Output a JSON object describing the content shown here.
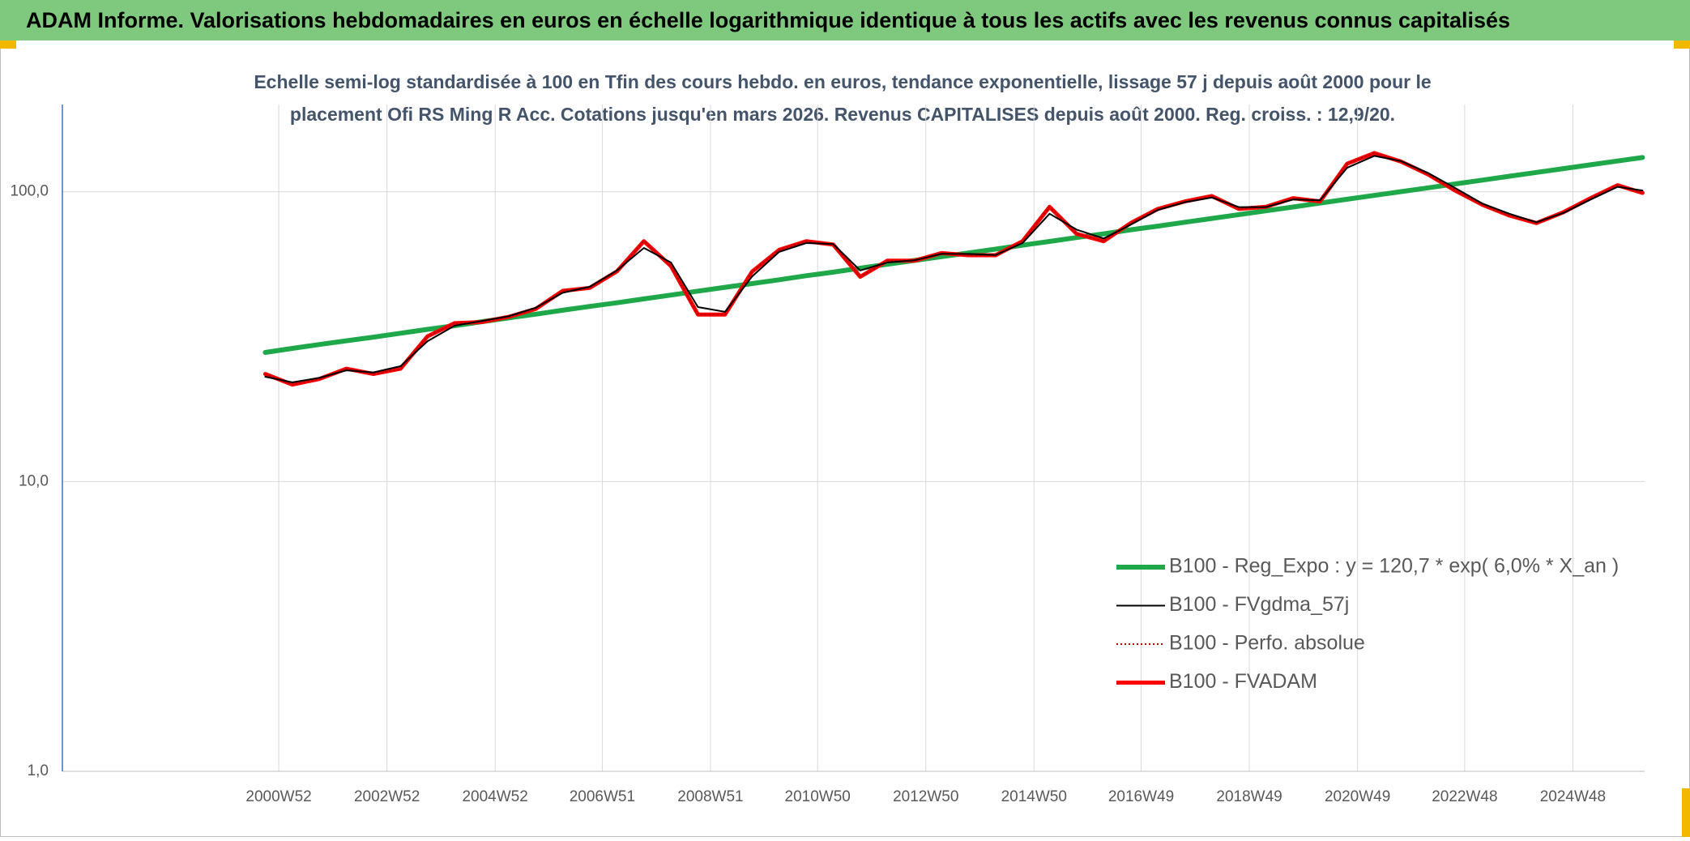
{
  "chart_data": {
    "type": "line",
    "title": "ADAM Informe. Valorisations hebdomadaires en euros en échelle logarithmique identique à tous les actifs avec les revenus connus capitalisés",
    "subtitle": [
      "Echelle semi-log standardisée à 100 en Tfin des cours hebdo. en euros, tendance exponentielle, lissage 57 j depuis août 2000 pour le",
      "placement Ofi RS Ming R Acc. Cotations jusqu'en mars 2026. Revenus CAPITALISES depuis août 2000. Reg. croiss. : 12,9/20."
    ],
    "y_scale": "log",
    "grid": true,
    "ylim": [
      1,
      200
    ],
    "yticks": [
      {
        "value": 1,
        "label": "1,0"
      },
      {
        "value": 10,
        "label": "10,0"
      },
      {
        "value": 100,
        "label": "100,0"
      }
    ],
    "xlim": [
      "1996W52",
      "2026W13"
    ],
    "xticks": [
      "2000W52",
      "2002W52",
      "2004W52",
      "2006W51",
      "2008W51",
      "2010W50",
      "2012W50",
      "2014W50",
      "2016W49",
      "2018W49",
      "2020W49",
      "2022W48",
      "2024W48"
    ],
    "x": [
      "2000W39",
      "2001W13",
      "2001W39",
      "2002W13",
      "2002W39",
      "2003W13",
      "2003W39",
      "2004W13",
      "2004W39",
      "2005W13",
      "2005W39",
      "2006W13",
      "2006W39",
      "2007W13",
      "2007W39",
      "2008W13",
      "2008W39",
      "2009W13",
      "2009W39",
      "2010W13",
      "2010W39",
      "2011W13",
      "2011W39",
      "2012W13",
      "2012W39",
      "2013W13",
      "2013W39",
      "2014W13",
      "2014W39",
      "2015W13",
      "2015W39",
      "2016W13",
      "2016W39",
      "2017W13",
      "2017W39",
      "2018W13",
      "2018W39",
      "2019W13",
      "2019W39",
      "2020W13",
      "2020W39",
      "2021W13",
      "2021W39",
      "2022W13",
      "2022W39",
      "2023W13",
      "2023W39",
      "2024W13",
      "2024W39",
      "2025W13",
      "2025W39",
      "2026W11"
    ],
    "series": [
      {
        "name": "B100 - Reg_Expo : y = 120,7 * exp( 6,0% *  X_an )",
        "color": "#1fa84a",
        "values": [
          27.9,
          28.8,
          29.7,
          30.6,
          31.5,
          32.5,
          33.5,
          34.5,
          35.6,
          36.7,
          37.8,
          39.0,
          40.2,
          41.4,
          42.7,
          44.0,
          45.4,
          46.8,
          48.2,
          49.7,
          51.3,
          52.8,
          54.5,
          56.2,
          57.9,
          59.7,
          61.5,
          63.4,
          65.4,
          67.4,
          69.5,
          71.6,
          73.9,
          76.1,
          78.5,
          80.9,
          83.4,
          86.0,
          88.6,
          91.4,
          94.2,
          97.1,
          100.1,
          103.2,
          106.4,
          109.7,
          113.1,
          116.6,
          120.2,
          123.9,
          127.7,
          131.3
        ]
      },
      {
        "name": "B100 - FVgdma_57j",
        "color": "#000000",
        "values": [
          23.0,
          22.0,
          22.8,
          24.2,
          23.8,
          25.0,
          30.5,
          34.5,
          35.8,
          37.2,
          39.8,
          44.8,
          47.0,
          53.5,
          64.0,
          57.0,
          40.0,
          38.5,
          51.0,
          62.0,
          66.5,
          66.0,
          53.5,
          57.0,
          58.0,
          61.0,
          61.0,
          60.5,
          66.5,
          84.0,
          74.0,
          69.0,
          77.0,
          86.5,
          92.0,
          95.5,
          88.5,
          88.5,
          94.0,
          93.5,
          121.0,
          133.0,
          127.5,
          116.0,
          103.0,
          91.0,
          84.0,
          78.5,
          84.5,
          94.0,
          104.0,
          101.0
        ]
      },
      {
        "name": "B100 - Perfo. absolue",
        "color": "#c00000",
        "values": [
          23.5,
          21.6,
          22.6,
          24.5,
          23.5,
          24.5,
          31.7,
          35.2,
          35.5,
          37.0,
          39.4,
          45.5,
          46.6,
          53.1,
          67.5,
          55.4,
          37.7,
          37.7,
          53.0,
          63.0,
          67.5,
          65.7,
          50.9,
          57.8,
          57.8,
          61.4,
          60.4,
          60.4,
          67.5,
          88.7,
          71.6,
          67.5,
          78.0,
          87.2,
          92.6,
          96.6,
          87.2,
          88.7,
          95.0,
          92.6,
          124.9,
          136.0,
          127.0,
          114.7,
          100.9,
          90.2,
          82.8,
          78.0,
          85.0,
          95.0,
          105.3,
          99.1
        ]
      },
      {
        "name": "B100 - FVADAM",
        "color": "#ff0000",
        "values": [
          23.5,
          21.6,
          22.6,
          24.5,
          23.5,
          24.5,
          31.7,
          35.2,
          35.5,
          37.0,
          39.4,
          45.5,
          46.6,
          53.1,
          67.5,
          55.4,
          37.7,
          37.7,
          53.0,
          63.0,
          67.5,
          65.7,
          50.9,
          57.8,
          57.8,
          61.4,
          60.4,
          60.4,
          67.5,
          88.7,
          71.6,
          67.5,
          78.0,
          87.2,
          92.6,
          96.6,
          87.2,
          88.7,
          95.0,
          92.6,
          124.9,
          136.0,
          127.0,
          114.7,
          100.9,
          90.2,
          82.8,
          78.0,
          85.0,
          95.0,
          105.3,
          99.1
        ]
      }
    ]
  }
}
